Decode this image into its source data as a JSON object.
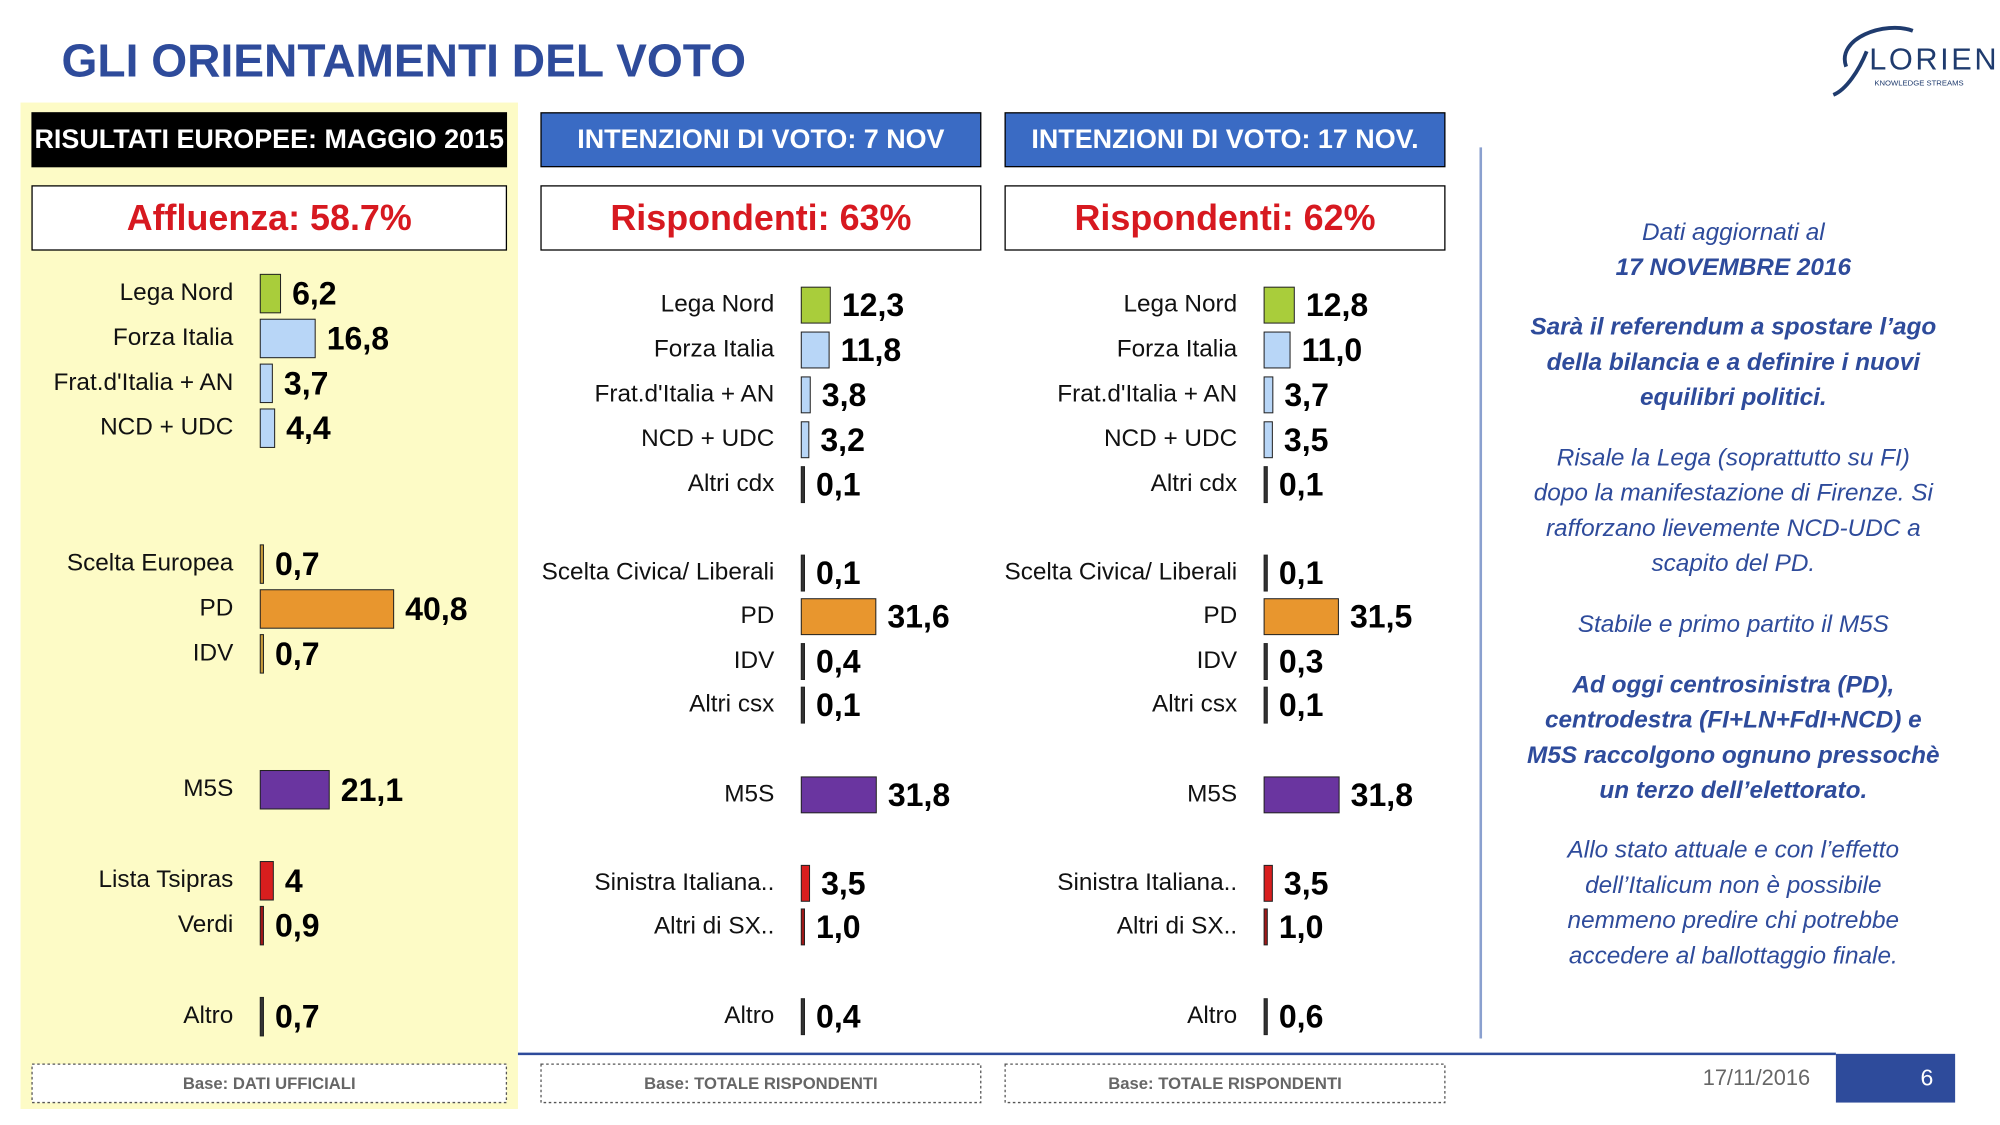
{
  "header": {
    "title": "GLI ORIENTAMENTI DEL VOTO"
  },
  "logo": {
    "name": "LORIEN",
    "tagline": "KNOWLEDGE STREAMS"
  },
  "chart_data": [
    {
      "type": "bar",
      "title": "RISULTATI EUROPEE:  MAGGIO 2015",
      "subtitle": "Affluenza: 58.7%",
      "categories": [
        "Lega Nord",
        "Forza Italia",
        "Frat.d'Italia + AN",
        "NCD + UDC",
        "Scelta Europea",
        "PD",
        "IDV",
        "M5S",
        "Lista Tsipras",
        "Verdi",
        "Altro"
      ],
      "values": [
        6.2,
        16.8,
        3.7,
        4.4,
        0.7,
        40.8,
        0.7,
        21.1,
        4,
        0.9,
        0.7
      ],
      "value_labels": [
        "6,2",
        "16,8",
        "3,7",
        "4,4",
        "0,7",
        "40,8",
        "0,7",
        "21,1",
        "4",
        "0,9",
        "0,7"
      ],
      "colors": [
        "#a9cd3b",
        "#b8d6f7",
        "#b8d6f7",
        "#b8d6f7",
        "#c79b3a",
        "#e8962e",
        "#c79b3a",
        "#6a35a0",
        "#d81e1e",
        "#a01818",
        "#333333"
      ],
      "note": "Base: DATI UFFICIALI"
    },
    {
      "type": "bar",
      "title": "INTENZIONI DI VOTO: 7 NOV",
      "subtitle": "Rispondenti: 63%",
      "categories": [
        "Lega Nord",
        "Forza Italia",
        "Frat.d'Italia + AN",
        "NCD + UDC",
        "Altri cdx",
        "Scelta Civica/ Liberali",
        "PD",
        "IDV",
        "Altri csx",
        "M5S",
        "Sinistra Italiana..",
        "Altri di SX..",
        "Altro"
      ],
      "values": [
        12.3,
        11.8,
        3.8,
        3.2,
        0.1,
        0.1,
        31.6,
        0.4,
        0.1,
        31.8,
        3.5,
        1.0,
        0.4
      ],
      "value_labels": [
        "12,3",
        "11,8",
        "3,8",
        "3,2",
        "0,1",
        "0,1",
        "31,6",
        "0,4",
        "0,1",
        "31,8",
        "3,5",
        "1,0",
        "0,4"
      ],
      "colors": [
        "#a9cd3b",
        "#b8d6f7",
        "#b8d6f7",
        "#b8d6f7",
        "#333333",
        "#333333",
        "#e8962e",
        "#333333",
        "#333333",
        "#6a35a0",
        "#d81e1e",
        "#a01818",
        "#333333"
      ],
      "note": "Base: TOTALE RISPONDENTI"
    },
    {
      "type": "bar",
      "title": "INTENZIONI DI VOTO: 17 NOV.",
      "subtitle": "Rispondenti: 62%",
      "categories": [
        "Lega Nord",
        "Forza Italia",
        "Frat.d'Italia + AN",
        "NCD + UDC",
        "Altri cdx",
        "Scelta Civica/ Liberali",
        "PD",
        "IDV",
        "Altri csx",
        "M5S",
        "Sinistra Italiana..",
        "Altri di SX..",
        "Altro"
      ],
      "values": [
        12.8,
        11.0,
        3.7,
        3.5,
        0.1,
        0.1,
        31.5,
        0.3,
        0.1,
        31.8,
        3.5,
        1.0,
        0.6
      ],
      "value_labels": [
        "12,8",
        "11,0",
        "3,7",
        "3,5",
        "0,1",
        "0,1",
        "31,5",
        "0,3",
        "0,1",
        "31,8",
        "3,5",
        "1,0",
        "0,6"
      ],
      "colors": [
        "#a9cd3b",
        "#b8d6f7",
        "#b8d6f7",
        "#b8d6f7",
        "#333333",
        "#333333",
        "#e8962e",
        "#333333",
        "#333333",
        "#6a35a0",
        "#d81e1e",
        "#a01818",
        "#333333"
      ],
      "note": "Base: TOTALE RISPONDENTI"
    }
  ],
  "side": {
    "paragraphs": [
      {
        "lines": [
          "Dati aggiornati al",
          "17 NOVEMBRE 2016"
        ]
      },
      {
        "lines": [
          "Sarà il referendum a spostare l’ago",
          "della bilancia e a definire i nuovi",
          "equilibri politici."
        ]
      },
      {
        "lines": [
          "Risale la Lega (soprattutto su FI)",
          "dopo la manifestazione di Firenze. Si",
          "rafforzano lievemente NCD-UDC a",
          "scapito del PD."
        ]
      },
      {
        "lines": [
          "Stabile e primo partito il M5S"
        ]
      },
      {
        "lines": [
          "Ad oggi centrosinistra (PD),",
          "centrodestra (FI+LN+FdI+NCD) e",
          "M5S raccolgono ognuno pressochè",
          "un terzo dell’elettorato."
        ]
      },
      {
        "lines": [
          "Allo stato attuale e con l’effetto",
          "dell’Italicum non è possibile",
          "nemmeno predire chi potrebbe",
          "accedere al ballottaggio finale."
        ]
      }
    ]
  },
  "footer": {
    "date": "17/11/2016",
    "page": "6"
  }
}
